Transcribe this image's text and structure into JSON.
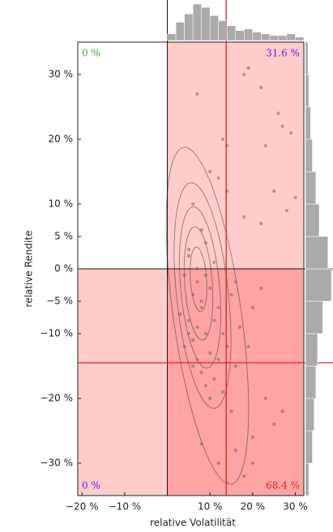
{
  "chart_data": [
    {
      "type": "scatter",
      "xlabel": "relative Volatilität",
      "ylabel": "relative Rendite",
      "xlim": [
        -21,
        32
      ],
      "ylim": [
        -35,
        35
      ],
      "xticks": [
        {
          "value": -20,
          "label": "−20 %"
        },
        {
          "value": -10,
          "label": "−10 %"
        },
        {
          "value": 10,
          "label": "10 %"
        },
        {
          "value": 20,
          "label": "20 %"
        },
        {
          "value": 30,
          "label": "30 %"
        }
      ],
      "yticks": [
        {
          "value": 30,
          "label": "30 %"
        },
        {
          "value": 20,
          "label": "20 %"
        },
        {
          "value": 10,
          "label": "10 %"
        },
        {
          "value": 5,
          "label": "5 %"
        },
        {
          "value": 0,
          "label": "0 %"
        },
        {
          "value": -5,
          "label": "−5 %"
        },
        {
          "value": -10,
          "label": "−10 %"
        },
        {
          "value": -20,
          "label": "−20 %"
        },
        {
          "value": -30,
          "label": "−30 %"
        }
      ],
      "color": "#7a6a6a",
      "x": [
        7,
        13,
        18,
        22,
        26,
        19,
        14,
        27,
        29,
        23,
        25,
        30,
        28,
        18,
        22,
        14,
        10,
        12,
        6,
        8,
        5,
        9,
        11,
        4,
        7,
        6,
        8,
        10,
        12,
        3,
        5,
        7,
        9,
        6,
        4,
        8,
        11,
        13,
        15,
        16,
        5,
        7,
        9,
        10,
        6,
        8,
        12,
        14,
        17,
        20,
        10,
        15,
        20,
        23,
        25,
        27,
        12,
        16,
        8,
        18,
        14,
        20,
        9,
        11,
        13,
        7,
        5,
        16,
        19,
        22
      ],
      "y": [
        27,
        20,
        30,
        28,
        24,
        31,
        19,
        22,
        21,
        19,
        12,
        11,
        9,
        8,
        7,
        12,
        15,
        14,
        10,
        6,
        3,
        4,
        1,
        -1,
        -2,
        -4,
        -5,
        -3,
        -6,
        -7,
        -8,
        -9,
        -10,
        -11,
        -12,
        -6,
        -8,
        -10,
        -4,
        -2,
        2,
        0,
        -1,
        -13,
        -15,
        -16,
        -14,
        -12,
        -9,
        -6,
        -20,
        -22,
        -26,
        -20,
        -24,
        -22,
        -30,
        -28,
        -27,
        -32,
        -33,
        -30,
        -18,
        -17,
        -19,
        -14,
        -10,
        -15,
        -12,
        -3
      ],
      "vline": {
        "value": 13.8,
        "color": "#d62728"
      },
      "hline": {
        "value": -14.5,
        "color": "#d62728"
      },
      "annotations": [
        {
          "text": "0 %",
          "corner": "top-left",
          "color": "#33aa33"
        },
        {
          "text": "31.6 %",
          "corner": "top-right",
          "color": "#6a1fc8"
        },
        {
          "text": "0 %",
          "corner": "bottom-left",
          "color": "#6a1fc8"
        },
        {
          "text": "68.4 %",
          "corner": "bottom-right",
          "color": "#d62728"
        }
      ]
    },
    {
      "type": "histogram",
      "orientation": "vertical",
      "color": "#aaaaaa",
      "bins": [
        0,
        2,
        4,
        6,
        8,
        10,
        12,
        14,
        16,
        18,
        20,
        22,
        24,
        26,
        28,
        30,
        32
      ],
      "values": [
        8,
        22,
        32,
        44,
        40,
        30,
        24,
        18,
        12,
        14,
        10,
        8,
        6,
        6,
        8,
        4
      ]
    },
    {
      "type": "histogram",
      "orientation": "horizontal",
      "color": "#aaaaaa",
      "bins": [
        -35,
        -30,
        -25,
        -20,
        -15,
        -10,
        -5,
        0,
        5,
        10,
        15,
        20,
        25,
        30,
        35
      ],
      "values": [
        4,
        8,
        10,
        12,
        14,
        20,
        30,
        26,
        16,
        12,
        8,
        6,
        4,
        3
      ]
    }
  ]
}
